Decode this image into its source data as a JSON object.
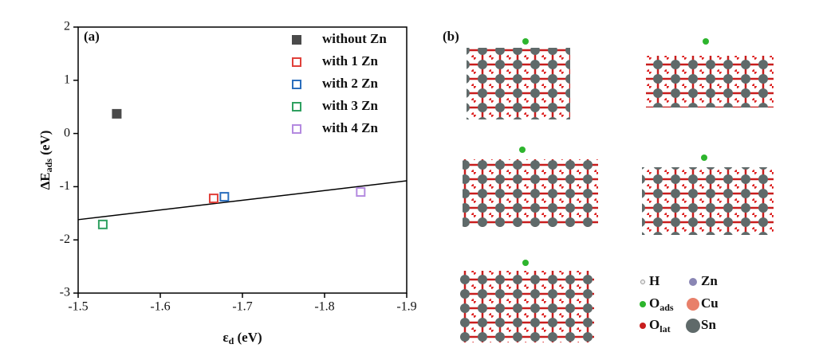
{
  "chart_data": {
    "type": "scatter",
    "panel_label": "(a)",
    "x_label": {
      "main": "ε",
      "sub": "d",
      "unit": " (eV)"
    },
    "y_label": {
      "main": "ΔE",
      "sub": "ads",
      "unit": " (eV)"
    },
    "xlim": [
      -1.5,
      -1.9
    ],
    "xticks": [
      -1.5,
      -1.6,
      -1.7,
      -1.8,
      -1.9
    ],
    "ylim": [
      -3,
      2
    ],
    "yticks": [
      -3,
      -2,
      -1,
      0,
      1,
      2
    ],
    "series": [
      {
        "name": "without Zn",
        "color": "#4a4a4a",
        "marker": "filled",
        "x": [
          -1.547
        ],
        "values": [
          0.37
        ]
      },
      {
        "name": "with 1 Zn",
        "color": "#e0403a",
        "marker": "open",
        "x": [
          -1.665
        ],
        "values": [
          -1.22
        ]
      },
      {
        "name": "with 2 Zn",
        "color": "#2a6ebd",
        "marker": "open",
        "x": [
          -1.678
        ],
        "values": [
          -1.19
        ]
      },
      {
        "name": "with 3 Zn",
        "color": "#2fa060",
        "marker": "open",
        "x": [
          -1.53
        ],
        "values": [
          -1.71
        ]
      },
      {
        "name": "with 4 Zn",
        "color": "#b48ae0",
        "marker": "open",
        "x": [
          -1.844
        ],
        "values": [
          -1.1
        ]
      }
    ],
    "fit_line": {
      "color": "#000000",
      "x": [
        -1.5,
        -1.9
      ],
      "values": [
        -1.62,
        -0.89
      ]
    }
  },
  "structures": {
    "panel_label": "(b)",
    "legend": [
      {
        "main": "H",
        "sub": ""
      },
      {
        "main": "Zn",
        "sub": ""
      },
      {
        "main": "O",
        "sub": "ads"
      },
      {
        "main": "Cu",
        "sub": ""
      },
      {
        "main": "O",
        "sub": "lat"
      },
      {
        "main": "Sn",
        "sub": ""
      }
    ]
  }
}
